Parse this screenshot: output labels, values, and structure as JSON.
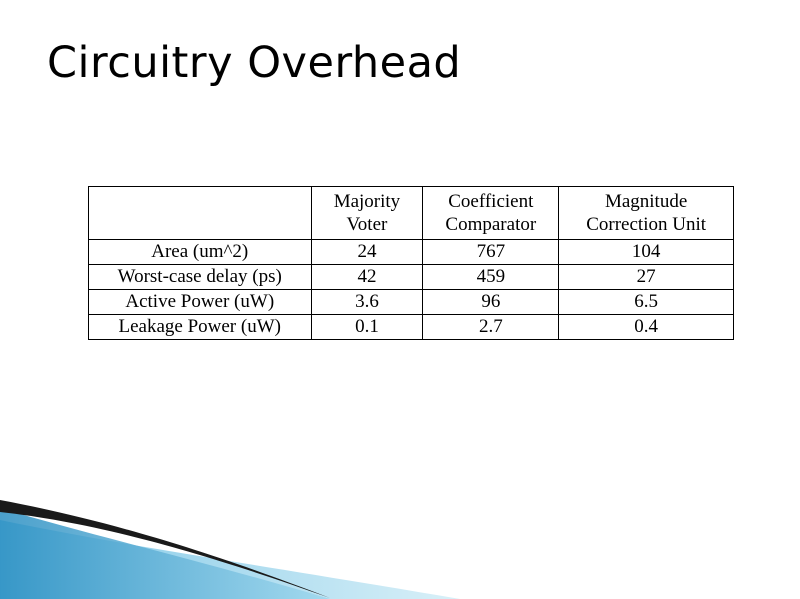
{
  "slide": {
    "title": "Circuitry Overhead"
  },
  "table": {
    "headers": [
      "",
      "Majority\nVoter",
      "Coefficient\nComparator",
      "Magnitude\nCorrection Unit"
    ],
    "rows": [
      [
        "Area (um^2)",
        "24",
        "767",
        "104"
      ],
      [
        "Worst-case delay (ps)",
        "42",
        "459",
        "27"
      ],
      [
        "Active Power (uW)",
        "3.6",
        "96",
        "6.5"
      ],
      [
        "Leakage Power (uW)",
        "0.1",
        "2.7",
        "0.4"
      ]
    ]
  },
  "colors": {
    "background": "#ffffff",
    "wave_light": "#9fd8ee",
    "wave_mid": "#3fa3d0",
    "wave_dark": "#1a1a1a"
  }
}
